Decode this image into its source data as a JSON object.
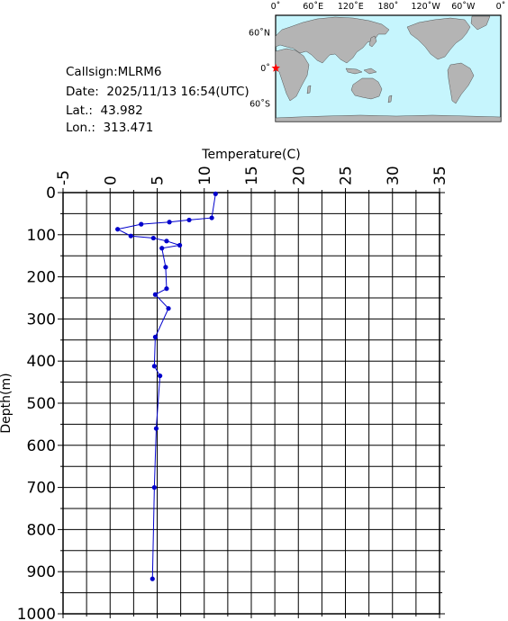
{
  "station": {
    "callsign": "Callsign:MLRM6",
    "date": "Date:  2025/11/13 16:54(UTC)",
    "lat": "Lat.:  43.982",
    "lon": "Lon.:  313.471"
  },
  "map": {
    "top_labels": [
      "0˚",
      "60˚E",
      "120˚E",
      "180˚",
      "120˚W",
      "60˚W",
      "0˚"
    ],
    "left_labels": [
      "60˚N",
      "0˚",
      "60˚S"
    ],
    "ocean_color": "#c6f5fd",
    "land_color": "#b4b4b4",
    "marker_color": "#ff0000"
  },
  "chart_data": {
    "type": "line",
    "xlabel": "Temperature(C)",
    "ylabel": "Depth(m)",
    "xlim": [
      -5,
      35
    ],
    "ylim": [
      0,
      1000
    ],
    "y_inverted": true,
    "x_ticks": [
      "-5",
      "0",
      "5",
      "10",
      "15",
      "20",
      "25",
      "30",
      "35"
    ],
    "y_ticks": [
      "0",
      "100",
      "200",
      "300",
      "400",
      "500",
      "600",
      "700",
      "800",
      "900",
      "1000"
    ],
    "grid": true,
    "line_color": "#0000cc",
    "series": [
      {
        "x": [
          11.2,
          10.8,
          8.4,
          6.3,
          3.3,
          0.8,
          2.2,
          4.6,
          6.0,
          7.4,
          5.5,
          5.9,
          6.0,
          4.8,
          6.2,
          4.8,
          4.7,
          5.3,
          4.9,
          4.7,
          4.5
        ],
        "y": [
          3,
          60,
          65,
          70,
          75,
          87,
          103,
          108,
          115,
          125,
          132,
          177,
          228,
          242,
          275,
          343,
          412,
          435,
          560,
          700,
          917
        ]
      }
    ]
  }
}
